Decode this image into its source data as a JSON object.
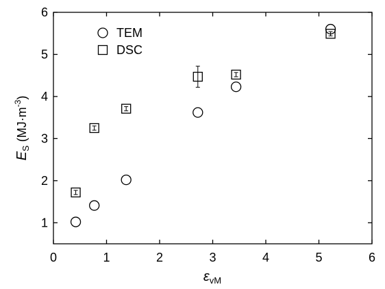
{
  "chart_data": {
    "type": "scatter",
    "xlabel": [
      "ε",
      "vM"
    ],
    "ylabel": [
      "E",
      "S",
      " (MJ·m",
      "-3",
      ")"
    ],
    "xlim": [
      0,
      6
    ],
    "ylim": [
      0.5,
      6
    ],
    "xticks": [
      0,
      1,
      2,
      3,
      4,
      5,
      6
    ],
    "yticks": [
      1,
      2,
      3,
      4,
      5,
      6
    ],
    "legend": "upper left",
    "series": [
      {
        "name": "TEM",
        "marker": "circle",
        "color": "#000000",
        "x": [
          0.42,
          0.77,
          1.37,
          2.72,
          3.44,
          5.22
        ],
        "values": [
          1.02,
          1.41,
          2.02,
          3.62,
          4.23,
          5.6
        ]
      },
      {
        "name": "DSC",
        "marker": "square",
        "color": "#000000",
        "x": [
          0.42,
          0.77,
          1.37,
          2.72,
          3.44,
          5.22
        ],
        "values": [
          1.72,
          3.25,
          3.71,
          4.47,
          4.52,
          5.49
        ],
        "errors": [
          0.05,
          0.05,
          0.05,
          0.25,
          0.05,
          0.05
        ]
      }
    ]
  }
}
